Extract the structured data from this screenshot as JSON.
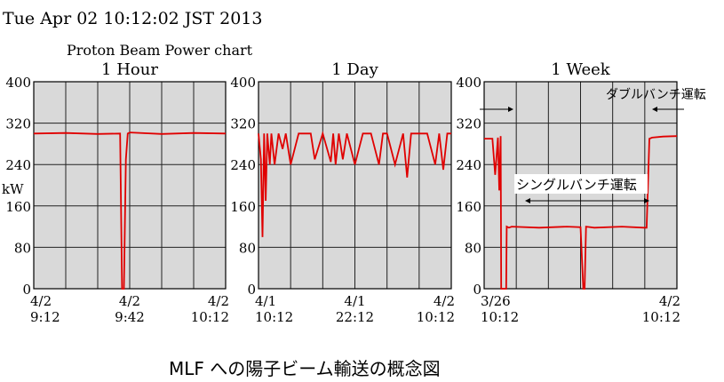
{
  "header": {
    "timestamp": "Tue Apr 02 10:12:02 JST 2013",
    "chart_title": "Proton Beam Power chart"
  },
  "caption": "MLF への陽子ビーム輸送の概念図",
  "colors": {
    "panel_bg": "#d9d9d9",
    "grid": "#222222",
    "series": "#e00000"
  },
  "chart_data": [
    {
      "type": "line",
      "title": "1 Hour",
      "ylabel": "kW",
      "ylim": [
        0,
        400
      ],
      "yticks": [
        "400",
        "320",
        "240",
        "160",
        "80",
        "0"
      ],
      "xticks": [
        {
          "line1": "4/2",
          "line2": "9:12"
        },
        {
          "line1": "4/2",
          "line2": "9:42"
        },
        {
          "line1": "4/2",
          "line2": "10:12"
        }
      ],
      "xlim": [
        0,
        60
      ],
      "series": [
        {
          "x": [
            0,
            10,
            20,
            27,
            27.6,
            28.2,
            28.8,
            29.4,
            30,
            40,
            50,
            60
          ],
          "y": [
            300,
            301,
            299,
            300,
            0,
            0,
            250,
            300,
            302,
            299,
            301,
            300
          ]
        }
      ]
    },
    {
      "type": "line",
      "title": "1 Day",
      "ylim": [
        0,
        400
      ],
      "yticks": [
        "400",
        "320",
        "240",
        "160",
        "80",
        "0"
      ],
      "xticks": [
        {
          "line1": "4/1",
          "line2": "10:12"
        },
        {
          "line1": "4/1",
          "line2": "22:12"
        },
        {
          "line1": "4/2",
          "line2": "10:12"
        }
      ],
      "xlim": [
        0,
        24
      ],
      "series": [
        {
          "x": [
            0,
            0.3,
            0.5,
            0.7,
            0.9,
            1.1,
            1.4,
            1.6,
            2.0,
            2.5,
            3.0,
            3.4,
            4.0,
            5.0,
            6.5,
            7.0,
            8.0,
            9.0,
            9.3,
            9.6,
            10.0,
            10.5,
            11.0,
            12.0,
            13.0,
            14.0,
            15.0,
            15.5,
            16.0,
            17.0,
            18.0,
            18.5,
            19.0,
            20.0,
            21.0,
            22.0,
            22.5,
            23.0,
            23.5,
            24.0
          ],
          "y": [
            300,
            250,
            100,
            300,
            170,
            300,
            240,
            300,
            240,
            300,
            270,
            300,
            240,
            300,
            300,
            250,
            300,
            245,
            300,
            240,
            300,
            250,
            300,
            240,
            300,
            300,
            240,
            300,
            300,
            240,
            300,
            215,
            300,
            300,
            300,
            240,
            300,
            230,
            300,
            300
          ]
        }
      ]
    },
    {
      "type": "line",
      "title": "1 Week",
      "ylim": [
        0,
        400
      ],
      "yticks": [
        "400",
        "320",
        "240",
        "160",
        "80",
        "0"
      ],
      "xticks": [
        {
          "line1": "3/26",
          "line2": "10:12"
        },
        {
          "line1": "4/2",
          "line2": "10:12"
        }
      ],
      "xlim": [
        0,
        7
      ],
      "series": [
        {
          "x": [
            0,
            0.3,
            0.4,
            0.5,
            0.55,
            0.6,
            0.62,
            0.64,
            0.8,
            0.82,
            0.9,
            1.0,
            2.0,
            3.0,
            3.5,
            3.6,
            3.65,
            3.7,
            4.0,
            5.0,
            5.8,
            5.9,
            6.0,
            6.1,
            6.5,
            7.0
          ],
          "y": [
            290,
            290,
            220,
            292,
            190,
            295,
            0,
            0,
            0,
            120,
            118,
            120,
            118,
            120,
            119,
            0,
            0,
            120,
            118,
            120,
            118,
            118,
            290,
            292,
            294,
            295
          ]
        }
      ],
      "annotations": {
        "double_bunch": "ダブルバンチ運転",
        "single_bunch": "シングルバンチ運転"
      }
    }
  ]
}
